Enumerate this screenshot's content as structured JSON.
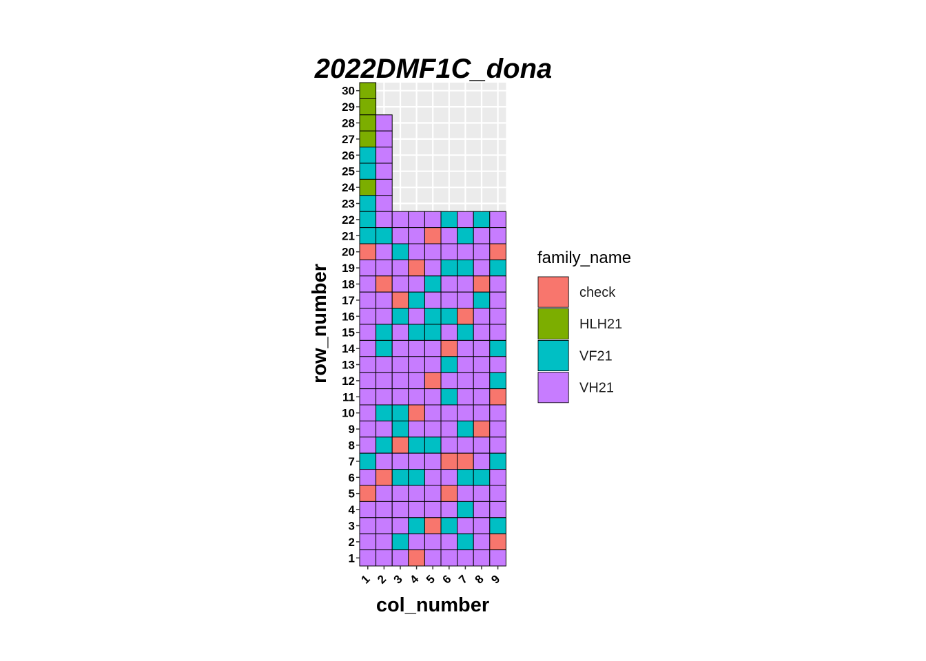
{
  "chart_data": {
    "type": "heatmap",
    "title": "2022DMF1C_dona",
    "xlabel": "col_number",
    "ylabel": "row_number",
    "x_ticks": [
      "1",
      "2",
      "3",
      "4",
      "5",
      "6",
      "7",
      "8",
      "9"
    ],
    "y_ticks": [
      "1",
      "2",
      "3",
      "4",
      "5",
      "6",
      "7",
      "8",
      "9",
      "10",
      "11",
      "12",
      "13",
      "14",
      "15",
      "16",
      "17",
      "18",
      "19",
      "20",
      "21",
      "22",
      "23",
      "24",
      "25",
      "26",
      "27",
      "28",
      "29",
      "30"
    ],
    "xlim": [
      1,
      9
    ],
    "ylim": [
      1,
      30
    ],
    "grid": true,
    "legend": {
      "title": "family_name",
      "placement": "right",
      "entries": [
        {
          "name": "check",
          "color": "#F8766D"
        },
        {
          "name": "HLH21",
          "color": "#7CAE00"
        },
        {
          "name": "VF21",
          "color": "#00BFC4"
        },
        {
          "name": "VH21",
          "color": "#C77CFF"
        }
      ]
    },
    "column_heights": [
      30,
      28,
      22,
      22,
      22,
      22,
      22,
      22,
      22
    ],
    "cells_by_row_top_to_bottom": [
      {
        "row": 30,
        "families": [
          "HLH21"
        ]
      },
      {
        "row": 29,
        "families": [
          "HLH21"
        ]
      },
      {
        "row": 28,
        "families": [
          "HLH21",
          "VH21"
        ]
      },
      {
        "row": 27,
        "families": [
          "HLH21",
          "VH21"
        ]
      },
      {
        "row": 26,
        "families": [
          "VF21",
          "VH21"
        ]
      },
      {
        "row": 25,
        "families": [
          "VF21",
          "VH21"
        ]
      },
      {
        "row": 24,
        "families": [
          "HLH21",
          "VH21"
        ]
      },
      {
        "row": 23,
        "families": [
          "VF21",
          "VH21"
        ]
      },
      {
        "row": 22,
        "families": [
          "VF21",
          "VH21",
          "VH21",
          "VH21",
          "VH21",
          "VF21",
          "VH21",
          "VF21",
          "VH21"
        ]
      },
      {
        "row": 21,
        "families": [
          "VF21",
          "VF21",
          "VH21",
          "VH21",
          "check",
          "VH21",
          "VF21",
          "VH21",
          "VH21"
        ]
      },
      {
        "row": 20,
        "families": [
          "check",
          "VH21",
          "VF21",
          "VH21",
          "VH21",
          "VH21",
          "VH21",
          "VH21",
          "check"
        ]
      },
      {
        "row": 19,
        "families": [
          "VH21",
          "VH21",
          "VH21",
          "check",
          "VH21",
          "VF21",
          "VF21",
          "VH21",
          "VF21"
        ]
      },
      {
        "row": 18,
        "families": [
          "VH21",
          "check",
          "VH21",
          "VH21",
          "VF21",
          "VH21",
          "VH21",
          "check",
          "VH21"
        ]
      },
      {
        "row": 17,
        "families": [
          "VH21",
          "VH21",
          "check",
          "VF21",
          "VH21",
          "VH21",
          "VH21",
          "VF21",
          "VH21"
        ]
      },
      {
        "row": 16,
        "families": [
          "VH21",
          "VH21",
          "VF21",
          "VH21",
          "VF21",
          "VF21",
          "check",
          "VH21",
          "VH21"
        ]
      },
      {
        "row": 15,
        "families": [
          "VH21",
          "VF21",
          "VH21",
          "VF21",
          "VF21",
          "VH21",
          "VF21",
          "VH21",
          "VH21"
        ]
      },
      {
        "row": 14,
        "families": [
          "VH21",
          "VF21",
          "VH21",
          "VH21",
          "VH21",
          "check",
          "VH21",
          "VH21",
          "VF21"
        ]
      },
      {
        "row": 13,
        "families": [
          "VH21",
          "VH21",
          "VH21",
          "VH21",
          "VH21",
          "VF21",
          "VH21",
          "VH21",
          "VH21"
        ]
      },
      {
        "row": 12,
        "families": [
          "VH21",
          "VH21",
          "VH21",
          "VH21",
          "check",
          "VH21",
          "VH21",
          "VH21",
          "VF21"
        ]
      },
      {
        "row": 11,
        "families": [
          "VH21",
          "VH21",
          "VH21",
          "VH21",
          "VH21",
          "VF21",
          "VH21",
          "VH21",
          "check"
        ]
      },
      {
        "row": 10,
        "families": [
          "VH21",
          "VF21",
          "VF21",
          "check",
          "VH21",
          "VH21",
          "VH21",
          "VH21",
          "VH21"
        ]
      },
      {
        "row": 9,
        "families": [
          "VH21",
          "VH21",
          "VF21",
          "VH21",
          "VH21",
          "VH21",
          "VF21",
          "check",
          "VH21"
        ]
      },
      {
        "row": 8,
        "families": [
          "VH21",
          "VF21",
          "check",
          "VF21",
          "VF21",
          "VH21",
          "VH21",
          "VH21",
          "VH21"
        ]
      },
      {
        "row": 7,
        "families": [
          "VF21",
          "VH21",
          "VH21",
          "VH21",
          "VH21",
          "check",
          "check",
          "VH21",
          "VF21"
        ]
      },
      {
        "row": 6,
        "families": [
          "VH21",
          "check",
          "VF21",
          "VF21",
          "VH21",
          "VH21",
          "VF21",
          "VF21",
          "VH21"
        ]
      },
      {
        "row": 5,
        "families": [
          "check",
          "VH21",
          "VH21",
          "VH21",
          "VH21",
          "check",
          "VH21",
          "VH21",
          "VH21"
        ]
      },
      {
        "row": 4,
        "families": [
          "VH21",
          "VH21",
          "VH21",
          "VH21",
          "VH21",
          "VH21",
          "VF21",
          "VH21",
          "VH21"
        ]
      },
      {
        "row": 3,
        "families": [
          "VH21",
          "VH21",
          "VH21",
          "VF21",
          "check",
          "VF21",
          "VH21",
          "VH21",
          "VF21"
        ]
      },
      {
        "row": 2,
        "families": [
          "VH21",
          "VH21",
          "VF21",
          "VH21",
          "VH21",
          "VH21",
          "VF21",
          "VH21",
          "check"
        ]
      },
      {
        "row": 1,
        "families": [
          "VH21",
          "VH21",
          "VH21",
          "check",
          "VH21",
          "VH21",
          "VH21",
          "VH21",
          "VH21"
        ]
      }
    ]
  }
}
